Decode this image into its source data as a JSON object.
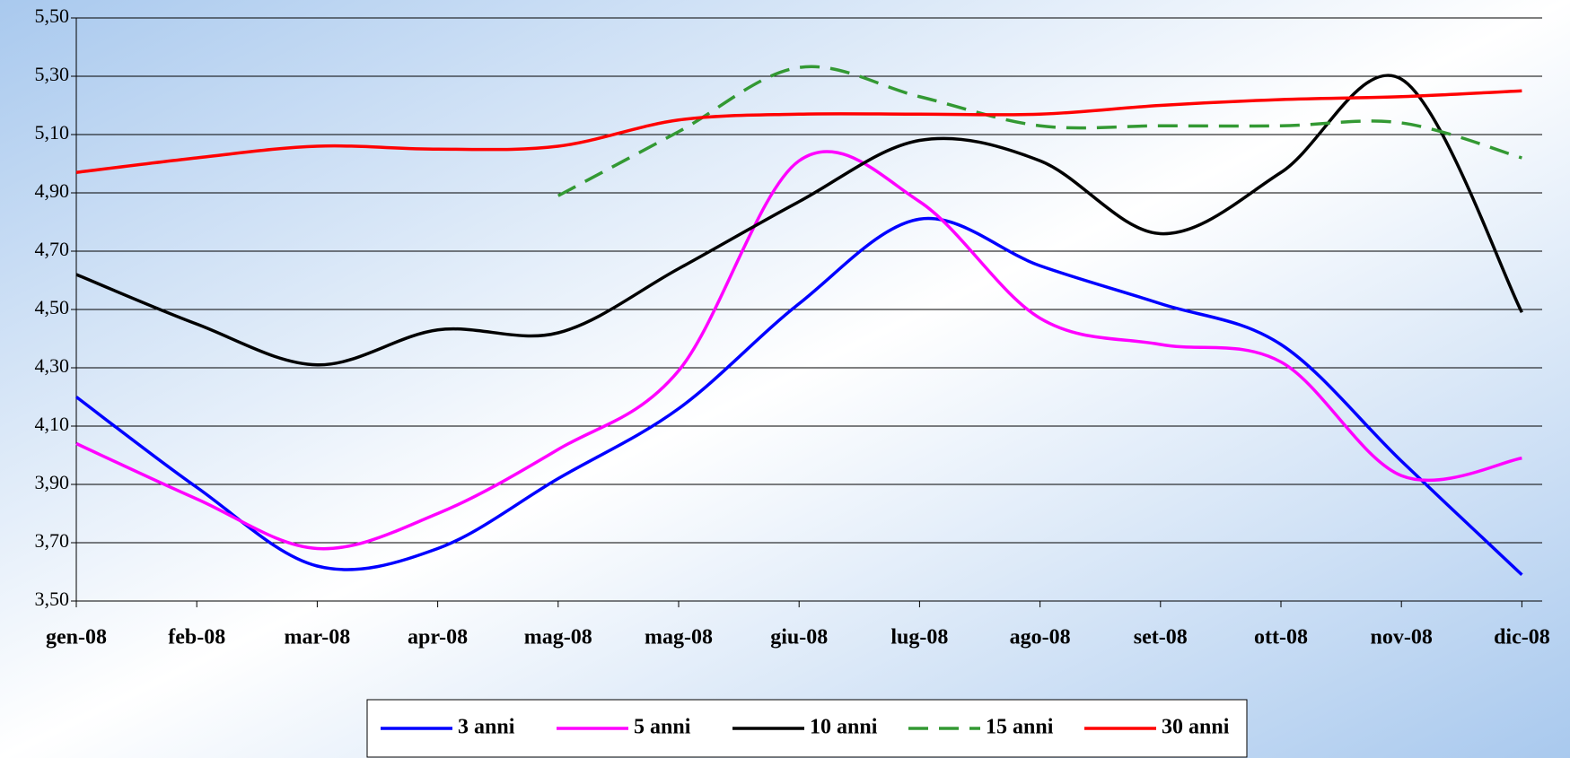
{
  "chart_data": {
    "type": "line",
    "categories": [
      "gen-08",
      "feb-08",
      "mar-08",
      "apr-08",
      "mag-08",
      "mag-08",
      "giu-08",
      "lug-08",
      "ago-08",
      "set-08",
      "ott-08",
      "nov-08",
      "dic-08"
    ],
    "series": [
      {
        "name": "3 anni",
        "color": "#0000ff",
        "dash": false,
        "values": [
          4.2,
          3.89,
          3.62,
          3.68,
          3.92,
          4.16,
          4.52,
          4.81,
          4.65,
          4.52,
          4.38,
          3.98,
          3.59
        ]
      },
      {
        "name": "5 anni",
        "color": "#ff00ff",
        "dash": false,
        "values": [
          4.04,
          3.85,
          3.68,
          3.8,
          4.02,
          4.29,
          5.01,
          4.87,
          4.47,
          4.38,
          4.32,
          3.93,
          3.99
        ]
      },
      {
        "name": "10 anni",
        "color": "#000000",
        "dash": false,
        "values": [
          4.62,
          4.45,
          4.31,
          4.43,
          4.42,
          4.64,
          4.87,
          5.08,
          5.01,
          4.76,
          4.97,
          5.29,
          4.49
        ]
      },
      {
        "name": "15 anni",
        "color": "#339933",
        "dash": true,
        "values": [
          null,
          null,
          null,
          null,
          4.89,
          5.11,
          5.33,
          5.23,
          5.13,
          5.13,
          5.13,
          5.14,
          5.02
        ]
      },
      {
        "name": "30 anni",
        "color": "#ff0000",
        "dash": false,
        "values": [
          4.97,
          5.02,
          5.06,
          5.05,
          5.06,
          5.15,
          5.17,
          5.17,
          5.17,
          5.2,
          5.22,
          5.23,
          5.25
        ]
      }
    ],
    "ylim": [
      3.5,
      5.5
    ],
    "yticks": [
      {
        "value": 3.5,
        "label": "3,50"
      },
      {
        "value": 3.7,
        "label": "3,70"
      },
      {
        "value": 3.9,
        "label": "3,90"
      },
      {
        "value": 4.1,
        "label": "4,10"
      },
      {
        "value": 4.3,
        "label": "4,30"
      },
      {
        "value": 4.5,
        "label": "4,50"
      },
      {
        "value": 4.7,
        "label": "4,70"
      },
      {
        "value": 4.9,
        "label": "4,90"
      },
      {
        "value": 5.1,
        "label": "5,10"
      },
      {
        "value": 5.3,
        "label": "5,30"
      },
      {
        "value": 5.5,
        "label": "5,50"
      }
    ],
    "grid": true,
    "legend": "bottom",
    "smooth": true
  }
}
